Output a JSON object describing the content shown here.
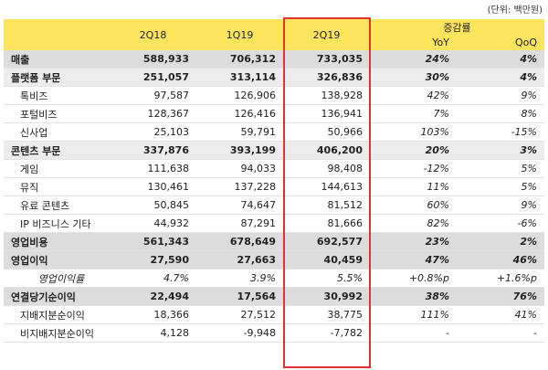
{
  "unit_note": "(단위: 백만원)",
  "table": {
    "header": {
      "periods": [
        "2Q18",
        "1Q19",
        "2Q19"
      ],
      "change_group": "증감률",
      "change_cols": [
        "YoY",
        "QoQ"
      ]
    },
    "rows": [
      [
        "매출",
        "588,933",
        "706,312",
        "733,035",
        "24%",
        "4%"
      ],
      [
        "플랫폼 부문",
        "251,057",
        "313,114",
        "326,836",
        "30%",
        "4%"
      ],
      [
        "톡비즈",
        "97,587",
        "126,906",
        "138,928",
        "42%",
        "9%"
      ],
      [
        "포털비즈",
        "128,367",
        "126,416",
        "136,941",
        "7%",
        "8%"
      ],
      [
        "신사업",
        "25,103",
        "59,791",
        "50,966",
        "103%",
        "-15%"
      ],
      [
        "콘텐츠 부문",
        "337,876",
        "393,199",
        "406,200",
        "20%",
        "3%"
      ],
      [
        "게임",
        "111,638",
        "94,033",
        "98,408",
        "-12%",
        "5%"
      ],
      [
        "뮤직",
        "130,461",
        "137,228",
        "144,613",
        "11%",
        "5%"
      ],
      [
        "유료 콘텐츠",
        "50,845",
        "74,647",
        "81,512",
        "60%",
        "9%"
      ],
      [
        "IP 비즈니스 기타",
        "44,932",
        "87,291",
        "81,666",
        "82%",
        "-6%"
      ],
      [
        "영업비용",
        "561,343",
        "678,649",
        "692,577",
        "23%",
        "2%"
      ],
      [
        "영업이익",
        "27,590",
        "27,663",
        "40,459",
        "47%",
        "46%"
      ],
      [
        "영업이익률",
        "4.7%",
        "3.9%",
        "5.5%",
        "+0.8%p",
        "+1.6%p"
      ],
      [
        "연결당기순이익",
        "22,494",
        "17,564",
        "30,992",
        "38%",
        "76%"
      ],
      [
        "지배지분순이익",
        "18,366",
        "27,512",
        "38,775",
        "111%",
        "41%"
      ],
      [
        "비지배지분순이익",
        "4,128",
        "-9,948",
        "-7,782",
        "-",
        "-"
      ]
    ]
  }
}
